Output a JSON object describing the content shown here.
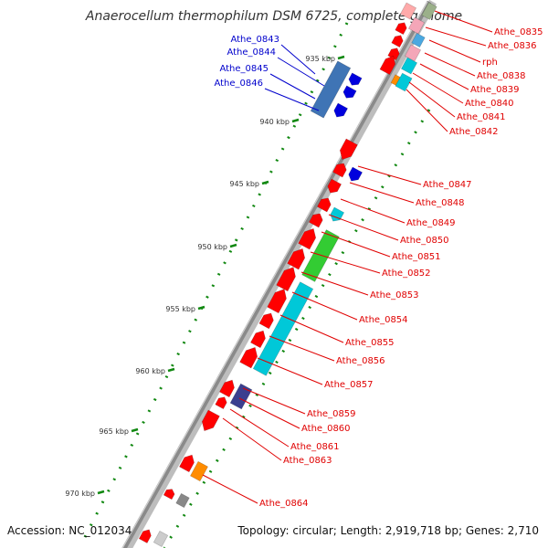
{
  "title": "Anaerocellum thermophilum DSM 6725, complete genome",
  "footer": {
    "accession": "Accession: NC_012034",
    "info": "Topology: circular; Length: 2,919,718 bp; Genes: 2,710"
  },
  "ticks": [
    "935 kbp",
    "940 kbp",
    "945 kbp",
    "950 kbp",
    "955 kbp",
    "960 kbp",
    "965 kbp",
    "970 kbp"
  ],
  "labels_left": [
    "Athe_0843",
    "Athe_0844",
    "Athe_0845",
    "Athe_0846"
  ],
  "labels_right": [
    "Athe_0835",
    "Athe_0836",
    "rph",
    "Athe_0838",
    "Athe_0839",
    "Athe_0840",
    "Athe_0841",
    "Athe_0842",
    "Athe_0847",
    "Athe_0848",
    "Athe_0849",
    "Athe_0850",
    "Athe_0851",
    "Athe_0852",
    "Athe_0853",
    "Athe_0854",
    "Athe_0855",
    "Athe_0856",
    "Athe_0857",
    "Athe_0859",
    "Athe_0860",
    "Athe_0861",
    "Athe_0863",
    "Athe_0864"
  ],
  "colors": {
    "backbone": "#8a8a8a",
    "cds": "#ff0000",
    "blue_gene": "#0000dd",
    "steel_gene": "#3f74b5",
    "cyan_gene": "#00c8d8",
    "green_gene": "#33cc33",
    "navy_gene": "#3b3f8f",
    "orange_gene": "#ff8c00",
    "label_left": "#0000cc",
    "label_right": "#e00000",
    "tick_green": "#118811"
  }
}
